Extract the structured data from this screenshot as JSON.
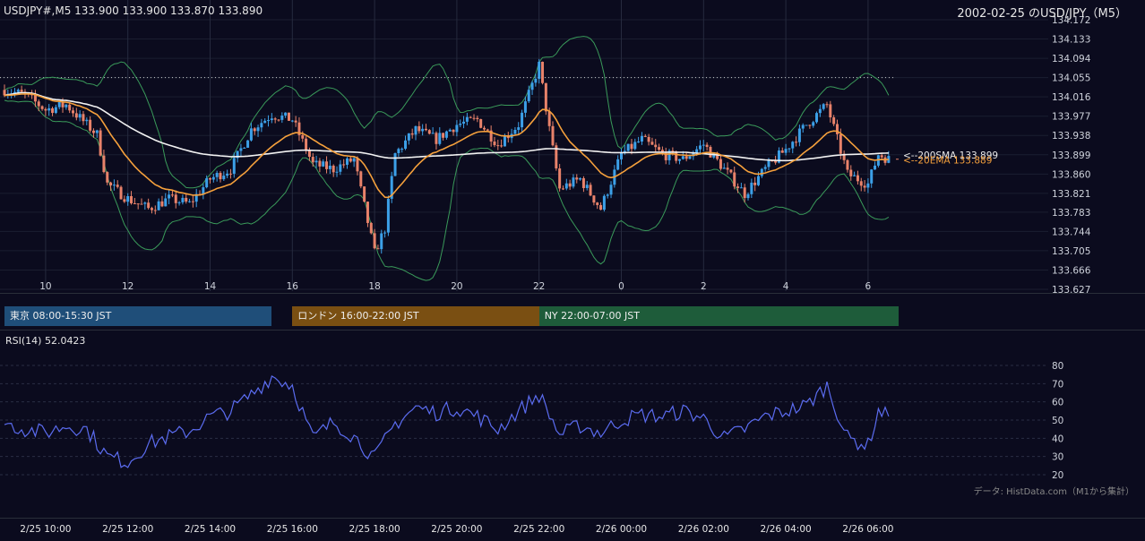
{
  "header": {
    "ohlc": "USDJPY#,M5 133.900 133.900 133.870 133.890",
    "title": "2002-02-25 のUSD/JPY（M5）"
  },
  "price_axis": {
    "ticks": [
      "134.172",
      "134.133",
      "134.094",
      "134.055",
      "134.016",
      "133.977",
      "133.938",
      "133.899",
      "133.860",
      "133.821",
      "133.783",
      "133.744",
      "133.705",
      "133.666",
      "133.627"
    ]
  },
  "hour_axis": {
    "labels": [
      "10",
      "12",
      "14",
      "16",
      "18",
      "20",
      "22",
      "0",
      "2",
      "4",
      "6"
    ]
  },
  "sessions": [
    {
      "label": "東京 08:00-15:30 JST",
      "color": "#1f4e79"
    },
    {
      "label": "ロンドン 16:00-22:00 JST",
      "color": "#7a4f12"
    },
    {
      "label": "NY 22:00-07:00 JST",
      "color": "#1e5c3a"
    }
  ],
  "annotations": {
    "sma_label": "<--200SMA 133.899",
    "ema_label": "<--20EMA 133.889"
  },
  "rsi": {
    "label": "RSI(14) 52.0423",
    "ticks": [
      "80",
      "70",
      "60",
      "50",
      "40",
      "30",
      "20"
    ]
  },
  "credit": "データ: HistData.com（M1から集計）",
  "time_axis": {
    "labels": [
      "2/25 10:00",
      "2/25 12:00",
      "2/25 14:00",
      "2/25 16:00",
      "2/25 18:00",
      "2/25 20:00",
      "2/25 22:00",
      "2/26 00:00",
      "2/26 02:00",
      "2/26 04:00",
      "2/26 06:00"
    ]
  },
  "colors": {
    "background": "#0b0b1e",
    "up": "#3ca0e8",
    "down": "#e8826a",
    "sma200": "#f2f2f2",
    "ema20": "#f5a03c",
    "bollinger": "#3a9a5a",
    "rsi_line": "#5b6cf0",
    "grid": "#1b1e30"
  },
  "chart_data": {
    "type": "candlestick",
    "symbol": "USDJPY",
    "timeframe": "M5",
    "ylim": [
      133.627,
      134.172
    ],
    "x_range": [
      "2002-02-25 09:00",
      "2002-02-26 06:30"
    ],
    "reference_line": 134.055,
    "anchors": {
      "close": [
        [
          "09:00",
          134.03
        ],
        [
          "09:30",
          134.02
        ],
        [
          "10:00",
          133.99
        ],
        [
          "10:30",
          134.0
        ],
        [
          "11:00",
          133.96
        ],
        [
          "11:15",
          133.94
        ],
        [
          "11:30",
          133.84
        ],
        [
          "12:00",
          133.81
        ],
        [
          "12:30",
          133.79
        ],
        [
          "13:00",
          133.81
        ],
        [
          "13:30",
          133.8
        ],
        [
          "14:00",
          133.85
        ],
        [
          "14:30",
          133.87
        ],
        [
          "15:00",
          133.95
        ],
        [
          "15:30",
          133.98
        ],
        [
          "16:00",
          133.97
        ],
        [
          "16:30",
          133.88
        ],
        [
          "17:00",
          133.87
        ],
        [
          "17:30",
          133.89
        ],
        [
          "18:00",
          133.7
        ],
        [
          "18:15",
          133.75
        ],
        [
          "18:30",
          133.9
        ],
        [
          "19:00",
          133.95
        ],
        [
          "19:30",
          133.93
        ],
        [
          "20:00",
          133.96
        ],
        [
          "20:30",
          133.97
        ],
        [
          "21:00",
          133.92
        ],
        [
          "21:30",
          133.96
        ],
        [
          "22:00",
          134.08
        ],
        [
          "22:15",
          133.95
        ],
        [
          "22:30",
          133.83
        ],
        [
          "23:00",
          133.85
        ],
        [
          "23:30",
          133.79
        ],
        [
          "00:00",
          133.9
        ],
        [
          "00:30",
          133.93
        ],
        [
          "01:00",
          133.9
        ],
        [
          "01:30",
          133.89
        ],
        [
          "02:00",
          133.92
        ],
        [
          "02:30",
          133.87
        ],
        [
          "03:00",
          133.82
        ],
        [
          "03:30",
          133.87
        ],
        [
          "04:00",
          133.91
        ],
        [
          "04:30",
          133.96
        ],
        [
          "05:00",
          134.0
        ],
        [
          "05:15",
          133.93
        ],
        [
          "05:30",
          133.86
        ],
        [
          "06:00",
          133.84
        ],
        [
          "06:15",
          133.9
        ],
        [
          "06:30",
          133.89
        ]
      ],
      "rsi": [
        [
          "09:00",
          48
        ],
        [
          "09:30",
          45
        ],
        [
          "10:00",
          43
        ],
        [
          "10:30",
          47
        ],
        [
          "11:00",
          45
        ],
        [
          "11:30",
          30
        ],
        [
          "12:00",
          27
        ],
        [
          "12:30",
          37
        ],
        [
          "13:00",
          41
        ],
        [
          "13:30",
          44
        ],
        [
          "14:00",
          52
        ],
        [
          "14:30",
          55
        ],
        [
          "15:00",
          64
        ],
        [
          "15:30",
          74
        ],
        [
          "16:00",
          69
        ],
        [
          "16:30",
          40
        ],
        [
          "17:00",
          49
        ],
        [
          "17:30",
          41
        ],
        [
          "18:00",
          29
        ],
        [
          "18:30",
          48
        ],
        [
          "19:00",
          57
        ],
        [
          "19:30",
          54
        ],
        [
          "20:00",
          57
        ],
        [
          "20:30",
          52
        ],
        [
          "21:00",
          45
        ],
        [
          "21:30",
          55
        ],
        [
          "22:00",
          64
        ],
        [
          "22:30",
          42
        ],
        [
          "23:00",
          47
        ],
        [
          "23:30",
          43
        ],
        [
          "00:00",
          50
        ],
        [
          "00:30",
          53
        ],
        [
          "01:00",
          52
        ],
        [
          "01:30",
          55
        ],
        [
          "02:00",
          51
        ],
        [
          "02:30",
          40
        ],
        [
          "03:00",
          45
        ],
        [
          "03:30",
          52
        ],
        [
          "04:00",
          55
        ],
        [
          "04:30",
          58
        ],
        [
          "05:00",
          69
        ],
        [
          "05:30",
          40
        ],
        [
          "06:00",
          36
        ],
        [
          "06:15",
          55
        ],
        [
          "06:30",
          52.04
        ]
      ]
    },
    "last_values": {
      "close": 133.89,
      "sma200": 133.899,
      "ema20": 133.889,
      "rsi14": 52.0423
    }
  }
}
